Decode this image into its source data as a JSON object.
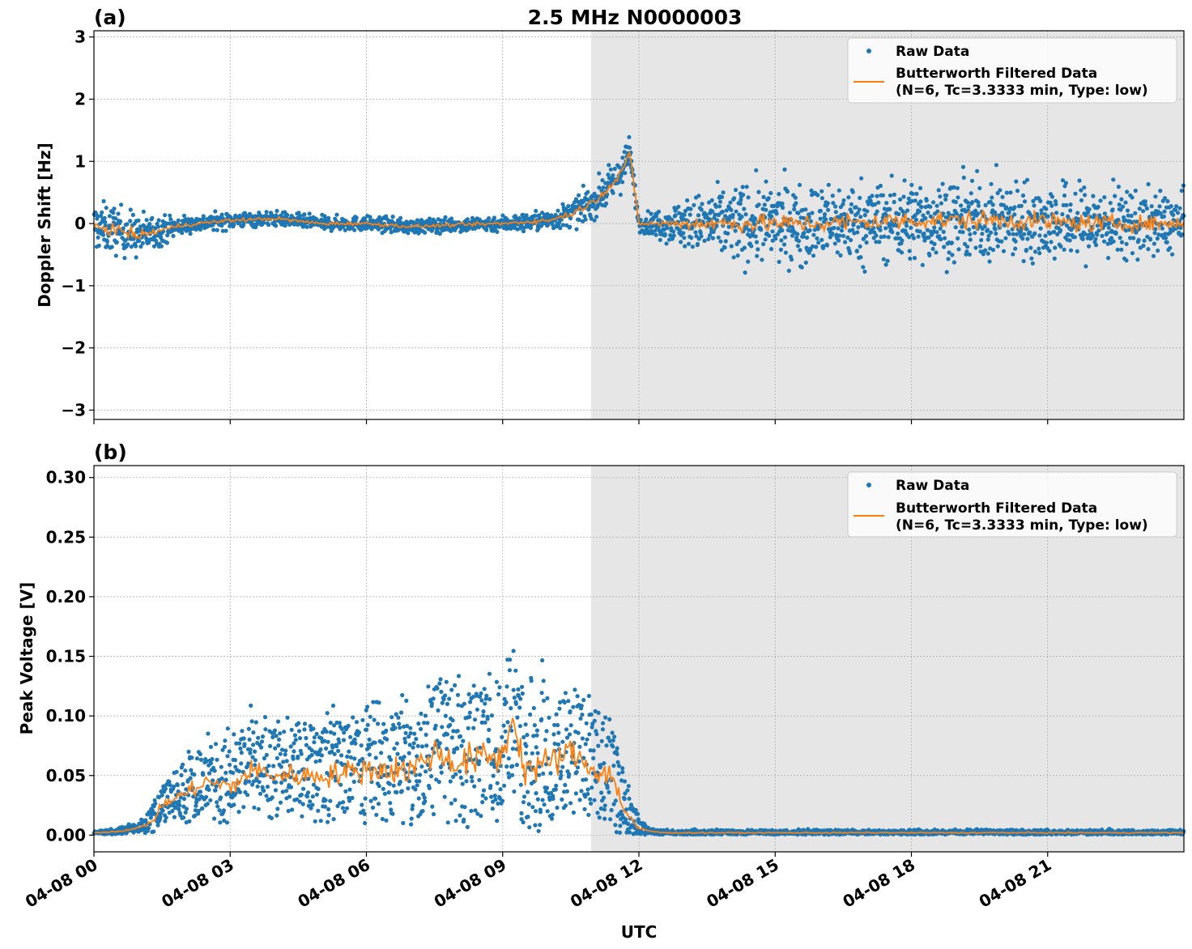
{
  "title": "2.5 MHz N0000003",
  "xlabel": "UTC",
  "colors": {
    "raw": "#1f77b4",
    "filtered": "#ff7f0e",
    "shade": "#e6e6e6",
    "grid": "#b0b0b0"
  },
  "x_tick_labels": [
    "04-08 00",
    "04-08 03",
    "04-08 06",
    "04-08 09",
    "04-08 12",
    "04-08 15",
    "04-08 18",
    "04-08 21"
  ],
  "legend": {
    "raw": "Raw Data",
    "filtered_line1": "Butterworth Filtered Data",
    "filtered_line2": "(N=6, Tc=3.3333 min, Type: low)"
  },
  "chart_data": [
    {
      "panel": "(a)",
      "type": "scatter",
      "ylabel": "Doppler Shift [Hz]",
      "xlim_hours": [
        0,
        24
      ],
      "ylim": [
        -3.15,
        3.1
      ],
      "yticks": [
        3,
        2,
        1,
        0,
        -1,
        -2,
        -3
      ],
      "ytick_labels": [
        "3",
        "2",
        "1",
        "0",
        "−1",
        "−2",
        "−3"
      ],
      "shaded_region_hours": [
        10.95,
        24
      ],
      "legend_position": "upper right",
      "grid": true,
      "series": [
        {
          "name": "Raw Data",
          "style": "points"
        },
        {
          "name": "Butterworth Filtered Data (N=6, Tc=3.3333 min, Type: low)",
          "style": "line"
        }
      ],
      "filtered_trend": {
        "x_hours": [
          0,
          0.5,
          1,
          1.5,
          2,
          3,
          4,
          5,
          6,
          7,
          8,
          9,
          10,
          10.5,
          11,
          11.5,
          11.8,
          12,
          12.5,
          13,
          14,
          16,
          18,
          20,
          22,
          24
        ],
        "y": [
          -0.05,
          -0.1,
          -0.2,
          -0.1,
          -0.02,
          0.05,
          0.08,
          0.0,
          0.0,
          -0.05,
          -0.02,
          0.0,
          0.05,
          0.15,
          0.35,
          0.7,
          1.1,
          0.0,
          0.0,
          0.0,
          0.0,
          0.0,
          0.05,
          0.05,
          0.0,
          0.0
        ]
      },
      "raw_spread_hz": {
        "x_hours": [
          0,
          0.5,
          1,
          1.5,
          2,
          4,
          8,
          10,
          11,
          11.8,
          12,
          13,
          14,
          18,
          22,
          24
        ],
        "half_width": [
          0.5,
          0.5,
          0.45,
          0.3,
          0.18,
          0.15,
          0.15,
          0.2,
          0.35,
          0.4,
          0.15,
          0.5,
          0.8,
          0.85,
          0.8,
          0.6
        ]
      }
    },
    {
      "panel": "(b)",
      "type": "scatter",
      "ylabel": "Peak Voltage [V]",
      "xlim_hours": [
        0,
        24
      ],
      "ylim": [
        -0.014,
        0.31
      ],
      "yticks": [
        0.0,
        0.05,
        0.1,
        0.15,
        0.2,
        0.25,
        0.3
      ],
      "ytick_labels": [
        "0.00",
        "0.05",
        "0.10",
        "0.15",
        "0.20",
        "0.25",
        "0.30"
      ],
      "shaded_region_hours": [
        10.95,
        24
      ],
      "legend_position": "upper right",
      "grid": true,
      "series": [
        {
          "name": "Raw Data",
          "style": "points"
        },
        {
          "name": "Butterworth Filtered Data (N=6, Tc=3.3333 min, Type: low)",
          "style": "line"
        }
      ],
      "filtered_trend": {
        "x_hours": [
          0,
          0.5,
          1,
          1.3,
          1.5,
          2,
          2.5,
          3,
          3.5,
          4,
          5,
          6,
          7,
          7.5,
          8,
          8.5,
          9,
          9.2,
          9.5,
          10,
          10.5,
          11,
          11.4,
          11.7,
          12,
          12.5,
          24
        ],
        "y": [
          0.002,
          0.003,
          0.006,
          0.012,
          0.025,
          0.035,
          0.045,
          0.04,
          0.055,
          0.05,
          0.05,
          0.055,
          0.055,
          0.07,
          0.06,
          0.065,
          0.065,
          0.1,
          0.055,
          0.06,
          0.07,
          0.055,
          0.05,
          0.02,
          0.005,
          0.002,
          0.002
        ]
      },
      "raw_spread_v": {
        "x_hours": [
          0,
          1,
          1.5,
          2,
          3,
          5,
          7,
          8,
          9,
          10,
          11,
          11.5,
          11.8,
          12.2,
          24
        ],
        "half_width": [
          0.001,
          0.004,
          0.015,
          0.025,
          0.035,
          0.04,
          0.05,
          0.055,
          0.06,
          0.055,
          0.045,
          0.04,
          0.015,
          0.002,
          0.002
        ]
      }
    }
  ]
}
